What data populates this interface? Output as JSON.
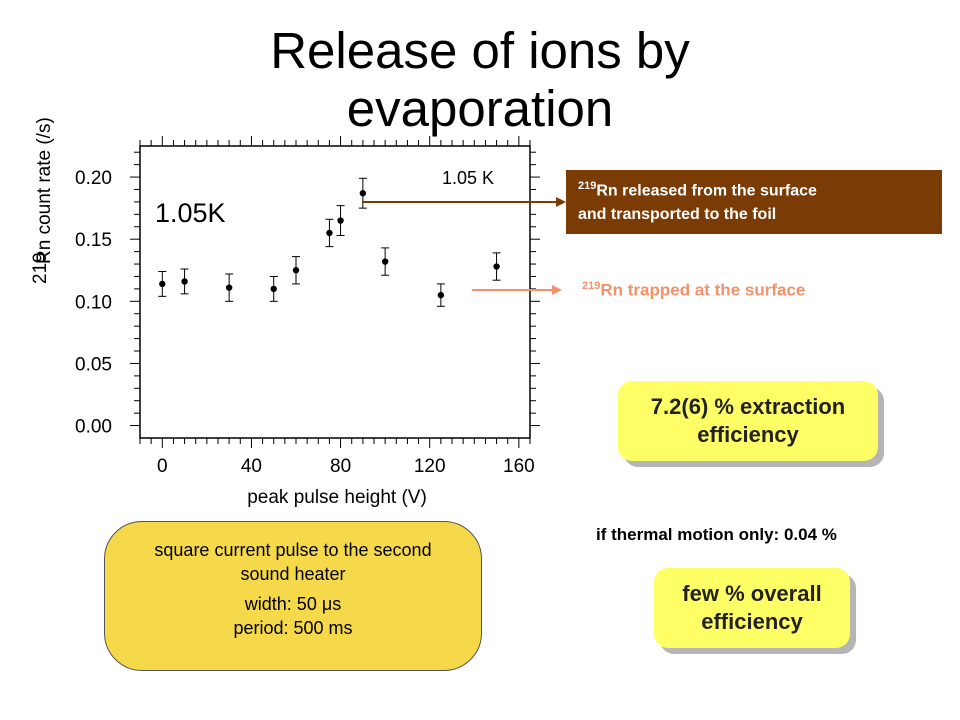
{
  "slide": {
    "title": "Release of ions by evaporation"
  },
  "annotations": {
    "released_sup": "219",
    "released_line1": "Rn released from the surface",
    "released_line2": "and transported to the foil",
    "released_color": "#7a3b04",
    "trapped_sup": "219",
    "trapped_text": "Rn trapped at the surface",
    "trapped_color": "#f2916a"
  },
  "extraction": {
    "line1": "7.2(6) % extraction",
    "line2": "efficiency"
  },
  "thermal": {
    "text": "if thermal motion only: 0.04 %"
  },
  "overall": {
    "line1": "few % overall",
    "line2": "efficiency"
  },
  "pulse": {
    "line1": "square current pulse to the second",
    "line2": "sound heater",
    "line3": "width: 50 μs",
    "line4": "period: 500 ms"
  },
  "chart_data": {
    "type": "scatter",
    "title": "",
    "xlabel": "peak pulse height (V)",
    "ylabel_sup": "219",
    "ylabel": "Rn count rate (/s)",
    "xlim": [
      -10,
      165
    ],
    "ylim": [
      -0.01,
      0.225
    ],
    "x_ticks": [
      0,
      40,
      80,
      120,
      160
    ],
    "y_ticks": [
      0.0,
      0.05,
      0.1,
      0.15,
      0.2
    ],
    "y_tick_labels": [
      "0.00",
      "0.05",
      "0.10",
      "0.15",
      "0.20"
    ],
    "in_plot_label": "1.05K",
    "series": [
      {
        "name": "1.05 K",
        "x": [
          0,
          10,
          30,
          50,
          60,
          75,
          80,
          90,
          100,
          125,
          150
        ],
        "y": [
          0.114,
          0.116,
          0.111,
          0.11,
          0.125,
          0.155,
          0.165,
          0.187,
          0.132,
          0.105,
          0.128
        ],
        "err": [
          0.01,
          0.01,
          0.011,
          0.01,
          0.011,
          0.011,
          0.012,
          0.012,
          0.011,
          0.009,
          0.011
        ]
      }
    ],
    "error_bars": true,
    "grid": false
  }
}
